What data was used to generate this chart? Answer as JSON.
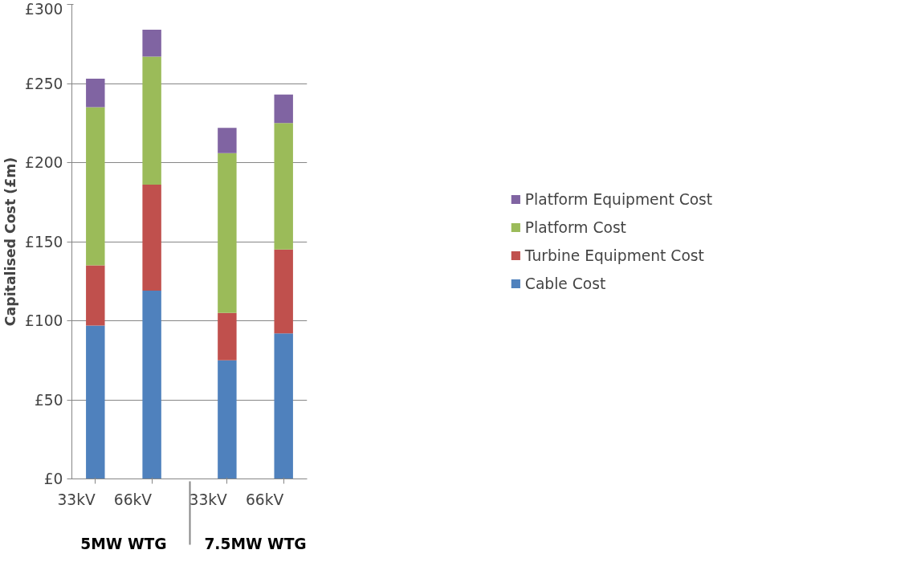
{
  "chart_data": {
    "type": "bar",
    "stacked": true,
    "ylabel": "Capitalised Cost (£m)",
    "categories": [
      "33kV",
      "66kV",
      "33kV",
      "66kV"
    ],
    "annotations": [
      "5MW WTG",
      "7.5MW WTG"
    ],
    "series": [
      {
        "name": "Cable Cost",
        "color": "#4f81bd",
        "values": [
          97,
          119,
          75,
          92
        ]
      },
      {
        "name": "Turbine Equipment Cost",
        "color": "#c0504d",
        "values": [
          38,
          67,
          30,
          53
        ]
      },
      {
        "name": "Platform Cost",
        "color": "#9bbb59",
        "values": [
          100,
          81,
          101,
          80
        ]
      },
      {
        "name": "Platform Equipment Cost",
        "color": "#8064a2",
        "values": [
          18,
          17,
          16,
          18
        ]
      }
    ],
    "ylim": [
      0,
      300
    ],
    "yticks": [
      {
        "value": 0,
        "label": "£0"
      },
      {
        "value": 50,
        "label": "£50"
      },
      {
        "value": 100,
        "label": "£100"
      },
      {
        "value": 150,
        "label": "£150"
      },
      {
        "value": 200,
        "label": "£200"
      },
      {
        "value": 250,
        "label": "£250"
      },
      {
        "value": 300,
        "label": "£300"
      }
    ],
    "grid": "y",
    "legend": "right"
  }
}
